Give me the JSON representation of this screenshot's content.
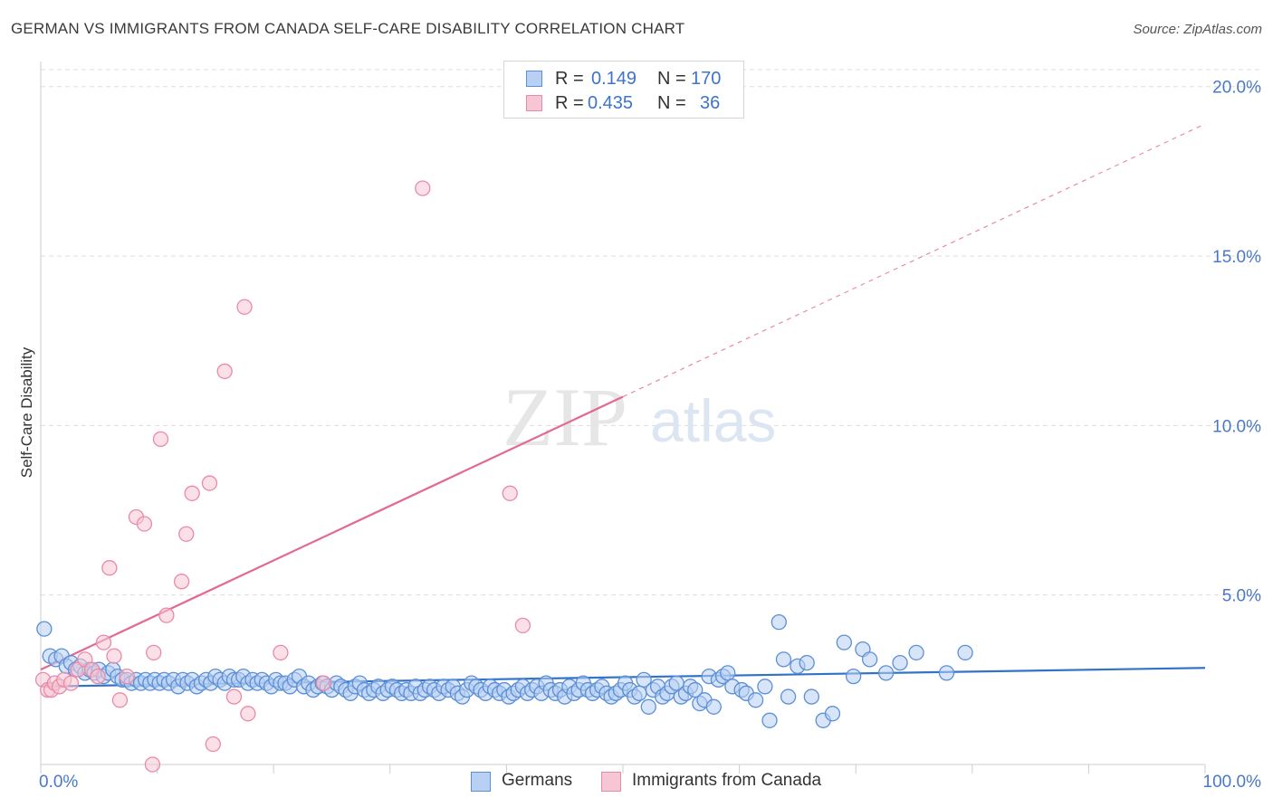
{
  "title": "GERMAN VS IMMIGRANTS FROM CANADA SELF-CARE DISABILITY CORRELATION CHART",
  "source": "Source: ZipAtlas.com",
  "watermark": {
    "zip": "ZIP",
    "atlas": "atlas"
  },
  "legend": {
    "r_label": "R =",
    "n_label": "N =",
    "rows": [
      {
        "series": "Germans",
        "r": "0.149",
        "n": "170"
      },
      {
        "series": "Immigrants from Canada",
        "r": "0.435",
        "n": "36"
      }
    ]
  },
  "colors": {
    "blue_fill": "#b8d0f3",
    "blue_stroke": "#5b8fd6",
    "blue_line": "#3273c9",
    "pink_fill": "#f7c6d5",
    "pink_stroke": "#e98aa8",
    "pink_line": "#e26a92",
    "tick": "#4a78c8"
  },
  "chart_data": {
    "type": "scatter",
    "title": "GERMAN VS IMMIGRANTS FROM CANADA SELF-CARE DISABILITY CORRELATION CHART",
    "xlabel": "",
    "ylabel": "Self-Care Disability",
    "xlim": [
      0,
      100
    ],
    "ylim": [
      0,
      20.5
    ],
    "x_tick_labels": [
      "0.0%",
      "100.0%"
    ],
    "y_ticks": [
      5,
      10,
      15,
      20
    ],
    "y_tick_labels": [
      "5.0%",
      "10.0%",
      "15.0%",
      "20.0%"
    ],
    "grid": "horizontal dashed",
    "legend_position": "top-center and bottom",
    "series": [
      {
        "name": "Germans",
        "color": "#5b8fd6",
        "trend": {
          "x": [
            0,
            100
          ],
          "y": [
            2.3,
            2.85
          ],
          "style": "solid"
        },
        "points": [
          [
            0.3,
            4.0
          ],
          [
            0.8,
            3.2
          ],
          [
            1.3,
            3.1
          ],
          [
            1.8,
            3.2
          ],
          [
            2.2,
            2.9
          ],
          [
            2.6,
            3.0
          ],
          [
            3.0,
            2.8
          ],
          [
            3.4,
            2.9
          ],
          [
            3.8,
            2.7
          ],
          [
            4.2,
            2.8
          ],
          [
            4.6,
            2.7
          ],
          [
            5.0,
            2.8
          ],
          [
            5.4,
            2.6
          ],
          [
            5.8,
            2.7
          ],
          [
            6.2,
            2.8
          ],
          [
            6.6,
            2.6
          ],
          [
            7.0,
            2.5
          ],
          [
            7.4,
            2.5
          ],
          [
            7.8,
            2.4
          ],
          [
            8.2,
            2.5
          ],
          [
            8.6,
            2.4
          ],
          [
            9.0,
            2.5
          ],
          [
            9.4,
            2.4
          ],
          [
            9.8,
            2.5
          ],
          [
            10.2,
            2.4
          ],
          [
            10.6,
            2.5
          ],
          [
            11.0,
            2.4
          ],
          [
            11.4,
            2.5
          ],
          [
            11.8,
            2.3
          ],
          [
            12.2,
            2.5
          ],
          [
            12.6,
            2.4
          ],
          [
            13.0,
            2.5
          ],
          [
            13.4,
            2.3
          ],
          [
            13.8,
            2.4
          ],
          [
            14.2,
            2.5
          ],
          [
            14.6,
            2.4
          ],
          [
            15.0,
            2.6
          ],
          [
            15.4,
            2.5
          ],
          [
            15.8,
            2.4
          ],
          [
            16.2,
            2.6
          ],
          [
            16.6,
            2.5
          ],
          [
            17.0,
            2.5
          ],
          [
            17.4,
            2.6
          ],
          [
            17.8,
            2.4
          ],
          [
            18.2,
            2.5
          ],
          [
            18.6,
            2.4
          ],
          [
            19.0,
            2.5
          ],
          [
            19.4,
            2.4
          ],
          [
            19.8,
            2.3
          ],
          [
            20.2,
            2.5
          ],
          [
            20.6,
            2.4
          ],
          [
            21.0,
            2.4
          ],
          [
            21.4,
            2.3
          ],
          [
            21.8,
            2.5
          ],
          [
            22.2,
            2.6
          ],
          [
            22.6,
            2.3
          ],
          [
            23.0,
            2.4
          ],
          [
            23.4,
            2.2
          ],
          [
            23.8,
            2.3
          ],
          [
            24.2,
            2.4
          ],
          [
            24.6,
            2.3
          ],
          [
            25.0,
            2.2
          ],
          [
            25.4,
            2.4
          ],
          [
            25.8,
            2.3
          ],
          [
            26.2,
            2.2
          ],
          [
            26.6,
            2.1
          ],
          [
            27.0,
            2.3
          ],
          [
            27.4,
            2.4
          ],
          [
            27.8,
            2.2
          ],
          [
            28.2,
            2.1
          ],
          [
            28.6,
            2.2
          ],
          [
            29.0,
            2.3
          ],
          [
            29.4,
            2.1
          ],
          [
            29.8,
            2.2
          ],
          [
            30.2,
            2.3
          ],
          [
            30.6,
            2.2
          ],
          [
            31.0,
            2.1
          ],
          [
            31.4,
            2.2
          ],
          [
            31.8,
            2.1
          ],
          [
            32.2,
            2.3
          ],
          [
            32.6,
            2.1
          ],
          [
            33.0,
            2.2
          ],
          [
            33.4,
            2.3
          ],
          [
            33.8,
            2.2
          ],
          [
            34.2,
            2.1
          ],
          [
            34.6,
            2.3
          ],
          [
            35.0,
            2.2
          ],
          [
            35.4,
            2.3
          ],
          [
            35.8,
            2.1
          ],
          [
            36.2,
            2.0
          ],
          [
            36.6,
            2.2
          ],
          [
            37.0,
            2.4
          ],
          [
            37.4,
            2.3
          ],
          [
            37.8,
            2.2
          ],
          [
            38.2,
            2.1
          ],
          [
            38.6,
            2.3
          ],
          [
            39.0,
            2.2
          ],
          [
            39.4,
            2.1
          ],
          [
            39.8,
            2.2
          ],
          [
            40.2,
            2.0
          ],
          [
            40.6,
            2.1
          ],
          [
            41.0,
            2.2
          ],
          [
            41.4,
            2.3
          ],
          [
            41.8,
            2.1
          ],
          [
            42.2,
            2.2
          ],
          [
            42.6,
            2.3
          ],
          [
            43.0,
            2.1
          ],
          [
            43.4,
            2.4
          ],
          [
            43.8,
            2.2
          ],
          [
            44.2,
            2.1
          ],
          [
            44.6,
            2.2
          ],
          [
            45.0,
            2.0
          ],
          [
            45.4,
            2.3
          ],
          [
            45.8,
            2.1
          ],
          [
            46.2,
            2.2
          ],
          [
            46.6,
            2.4
          ],
          [
            47.0,
            2.2
          ],
          [
            47.4,
            2.1
          ],
          [
            47.8,
            2.2
          ],
          [
            48.2,
            2.3
          ],
          [
            48.6,
            2.1
          ],
          [
            49.0,
            2.0
          ],
          [
            49.4,
            2.1
          ],
          [
            49.8,
            2.2
          ],
          [
            50.2,
            2.4
          ],
          [
            50.6,
            2.2
          ],
          [
            51.0,
            2.0
          ],
          [
            51.4,
            2.1
          ],
          [
            51.8,
            2.5
          ],
          [
            52.2,
            1.7
          ],
          [
            52.6,
            2.2
          ],
          [
            53.0,
            2.3
          ],
          [
            53.4,
            2.0
          ],
          [
            53.8,
            2.1
          ],
          [
            54.2,
            2.3
          ],
          [
            54.6,
            2.4
          ],
          [
            55.0,
            2.0
          ],
          [
            55.4,
            2.1
          ],
          [
            55.8,
            2.3
          ],
          [
            56.2,
            2.2
          ],
          [
            56.6,
            1.8
          ],
          [
            57.0,
            1.9
          ],
          [
            57.4,
            2.6
          ],
          [
            57.8,
            1.7
          ],
          [
            58.2,
            2.5
          ],
          [
            58.6,
            2.6
          ],
          [
            59.0,
            2.7
          ],
          [
            59.4,
            2.3
          ],
          [
            60.2,
            2.2
          ],
          [
            60.6,
            2.1
          ],
          [
            61.4,
            1.9
          ],
          [
            62.2,
            2.3
          ],
          [
            62.6,
            1.3
          ],
          [
            63.4,
            4.2
          ],
          [
            63.8,
            3.1
          ],
          [
            64.2,
            2.0
          ],
          [
            65.0,
            2.9
          ],
          [
            65.8,
            3.0
          ],
          [
            66.2,
            2.0
          ],
          [
            67.2,
            1.3
          ],
          [
            68.0,
            1.5
          ],
          [
            69.0,
            3.6
          ],
          [
            69.8,
            2.6
          ],
          [
            70.6,
            3.4
          ],
          [
            71.2,
            3.1
          ],
          [
            72.6,
            2.7
          ],
          [
            73.8,
            3.0
          ],
          [
            75.2,
            3.3
          ],
          [
            77.8,
            2.7
          ],
          [
            79.4,
            3.3
          ]
        ]
      },
      {
        "name": "Immigrants from Canada",
        "color": "#e98aa8",
        "trend": {
          "x": [
            0,
            100
          ],
          "y": [
            2.8,
            18.9
          ],
          "solid_to_x": 50
        },
        "points": [
          [
            0.2,
            2.5
          ],
          [
            0.6,
            2.2
          ],
          [
            0.9,
            2.2
          ],
          [
            1.2,
            2.4
          ],
          [
            1.6,
            2.3
          ],
          [
            2.0,
            2.5
          ],
          [
            2.6,
            2.4
          ],
          [
            3.2,
            2.8
          ],
          [
            3.8,
            3.1
          ],
          [
            4.4,
            2.8
          ],
          [
            4.9,
            2.6
          ],
          [
            5.4,
            3.6
          ],
          [
            5.9,
            5.8
          ],
          [
            6.3,
            3.2
          ],
          [
            6.8,
            1.9
          ],
          [
            7.4,
            2.6
          ],
          [
            8.2,
            7.3
          ],
          [
            8.9,
            7.1
          ],
          [
            9.6,
            0.0
          ],
          [
            9.7,
            3.3
          ],
          [
            10.3,
            9.6
          ],
          [
            10.8,
            4.4
          ],
          [
            12.1,
            5.4
          ],
          [
            12.5,
            6.8
          ],
          [
            13.0,
            8.0
          ],
          [
            14.5,
            8.3
          ],
          [
            14.8,
            0.6
          ],
          [
            15.8,
            11.6
          ],
          [
            16.6,
            2.0
          ],
          [
            17.5,
            13.5
          ],
          [
            17.8,
            1.5
          ],
          [
            20.6,
            3.3
          ],
          [
            24.3,
            2.4
          ],
          [
            32.8,
            17.0
          ],
          [
            40.3,
            8.0
          ],
          [
            41.4,
            4.1
          ]
        ]
      }
    ]
  }
}
